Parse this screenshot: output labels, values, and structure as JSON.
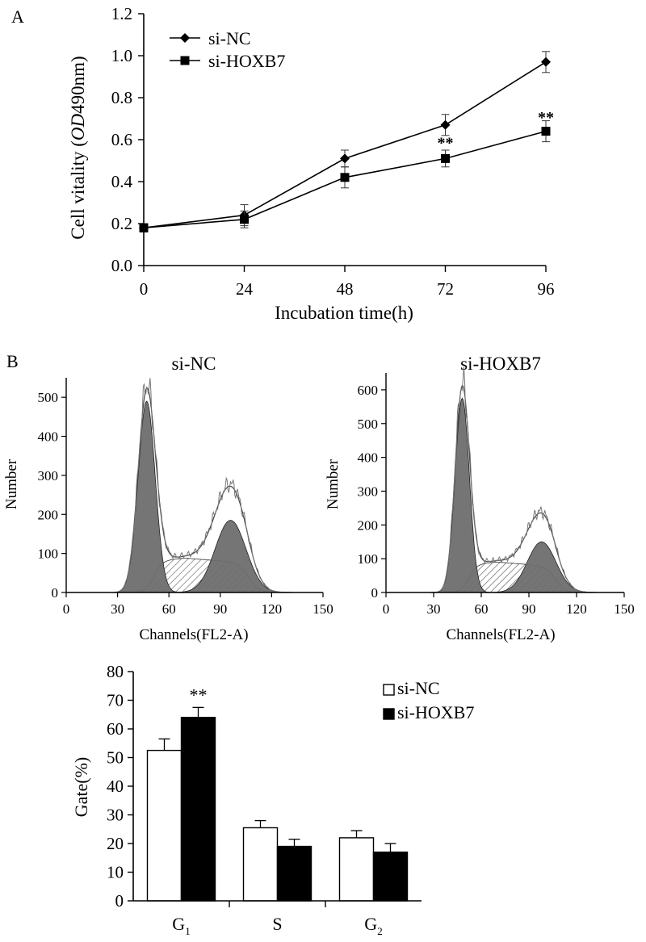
{
  "chart_data": [
    {
      "panel": "A",
      "type": "line",
      "xlabel": "Incubation time(h)",
      "ylabel": {
        "prefix": "Cell vitality (",
        "italic": "OD",
        "suffix": "490nm)"
      },
      "x": [
        0,
        24,
        48,
        72,
        96
      ],
      "x_ticks": [
        "0",
        "24",
        "48",
        "72",
        "96"
      ],
      "xlim": [
        0,
        96
      ],
      "ylim": [
        0,
        1.2
      ],
      "y_ticks": [
        "0.0",
        "0.2",
        "0.4",
        "0.6",
        "0.8",
        "1.0",
        "1.2"
      ],
      "series": [
        {
          "name": "si-NC",
          "marker": "diamond",
          "values": [
            0.18,
            0.24,
            0.51,
            0.67,
            0.97
          ],
          "errors": [
            0.02,
            0.05,
            0.04,
            0.05,
            0.05
          ]
        },
        {
          "name": "si-HOXB7",
          "marker": "square",
          "values": [
            0.18,
            0.22,
            0.42,
            0.51,
            0.64
          ],
          "errors": [
            0.02,
            0.04,
            0.05,
            0.04,
            0.05
          ]
        }
      ],
      "annotations": [
        {
          "x": 72,
          "y": 0.56,
          "text": "**"
        },
        {
          "x": 96,
          "y": 0.68,
          "text": "**"
        }
      ],
      "legend": "top-left"
    },
    {
      "panel": "B",
      "type": "area",
      "title": "si-NC",
      "xlabel": "Channels(FL2-A)",
      "ylabel": "Number",
      "xlim": [
        0,
        150
      ],
      "x_ticks": [
        "0",
        "30",
        "60",
        "90",
        "120",
        "150"
      ],
      "ylim": [
        0,
        550
      ],
      "y_ticks": [
        "0",
        "100",
        "200",
        "300",
        "400",
        "500"
      ],
      "components": {
        "G1": {
          "mean": 47,
          "sd": 5,
          "height": 490
        },
        "S": {
          "from": 48,
          "to": 110,
          "height": 88
        },
        "G2": {
          "mean": 96,
          "sd": 9,
          "height": 185
        }
      }
    },
    {
      "panel": "B",
      "type": "area",
      "title": "si-HOXB7",
      "xlabel": "Channels(FL2-A)",
      "ylabel": "Number",
      "xlim": [
        0,
        150
      ],
      "x_ticks": [
        "0",
        "30",
        "60",
        "90",
        "120",
        "150"
      ],
      "ylim": [
        0,
        650
      ],
      "y_ticks": [
        "0",
        "100",
        "200",
        "300",
        "400",
        "500",
        "600"
      ],
      "components": {
        "G1": {
          "mean": 48,
          "sd": 4.5,
          "height": 575
        },
        "S": {
          "from": 49,
          "to": 110,
          "height": 90
        },
        "G2": {
          "mean": 98,
          "sd": 9,
          "height": 150
        }
      }
    },
    {
      "panel": "B",
      "type": "bar",
      "ylabel": "Gate(%)",
      "categories": [
        "G1",
        "S",
        "G2"
      ],
      "category_labels": [
        {
          "main": "G",
          "sub": "1"
        },
        {
          "main": "S",
          "sub": ""
        },
        {
          "main": "G",
          "sub": "2"
        }
      ],
      "ylim": [
        0,
        80
      ],
      "y_ticks": [
        "0",
        "10",
        "20",
        "30",
        "40",
        "50",
        "60",
        "70",
        "80"
      ],
      "series": [
        {
          "name": "si-NC",
          "fill": "#ffffff",
          "values": [
            52.5,
            25.5,
            22.0
          ],
          "errors": [
            4.0,
            2.5,
            2.5
          ]
        },
        {
          "name": "si-HOXB7",
          "fill": "#000000",
          "values": [
            64.0,
            19.0,
            17.0
          ],
          "errors": [
            3.5,
            2.5,
            3.0
          ]
        }
      ],
      "annotations": [
        {
          "category": "G1",
          "series": "si-HOXB7",
          "text": "**"
        }
      ],
      "legend": "top-right"
    }
  ],
  "panel_labels": {
    "a": "A",
    "b": "B"
  }
}
